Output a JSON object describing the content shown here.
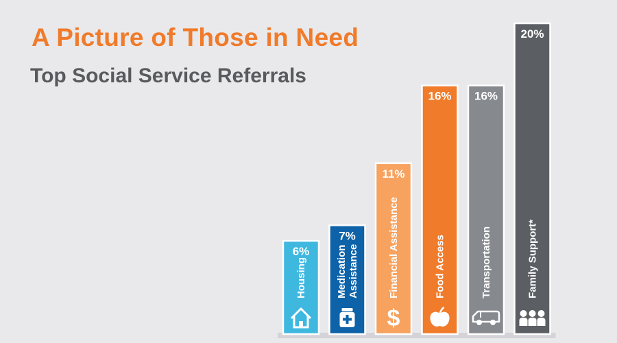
{
  "title": "A Picture of Those in Need",
  "subtitle": "Top Social Service Referrals",
  "chart_data": {
    "type": "bar",
    "title": "A Picture of Those in Need",
    "subtitle": "Top Social Service Referrals",
    "unit": "%",
    "categories": [
      [
        "Housing"
      ],
      [
        "Medication",
        "Assistance"
      ],
      [
        "Financial Assistance"
      ],
      [
        "Food Access"
      ],
      [
        "Transportation"
      ],
      [
        "Family Support*"
      ]
    ],
    "values": [
      6,
      7,
      11,
      16,
      16,
      20
    ],
    "value_labels": [
      "6%",
      "7%",
      "11%",
      "16%",
      "16%",
      "20%"
    ],
    "ylim": [
      0,
      20
    ],
    "grid": false,
    "legend": "none",
    "colors": [
      "#3fb8e0",
      "#0d62a8",
      "#f7a25e",
      "#f07b2a",
      "#86898e",
      "#5b5e63"
    ],
    "icons": [
      "house-icon",
      "medicine-bottle-icon",
      "dollar-icon",
      "apple-icon",
      "van-icon",
      "family-icon"
    ]
  }
}
